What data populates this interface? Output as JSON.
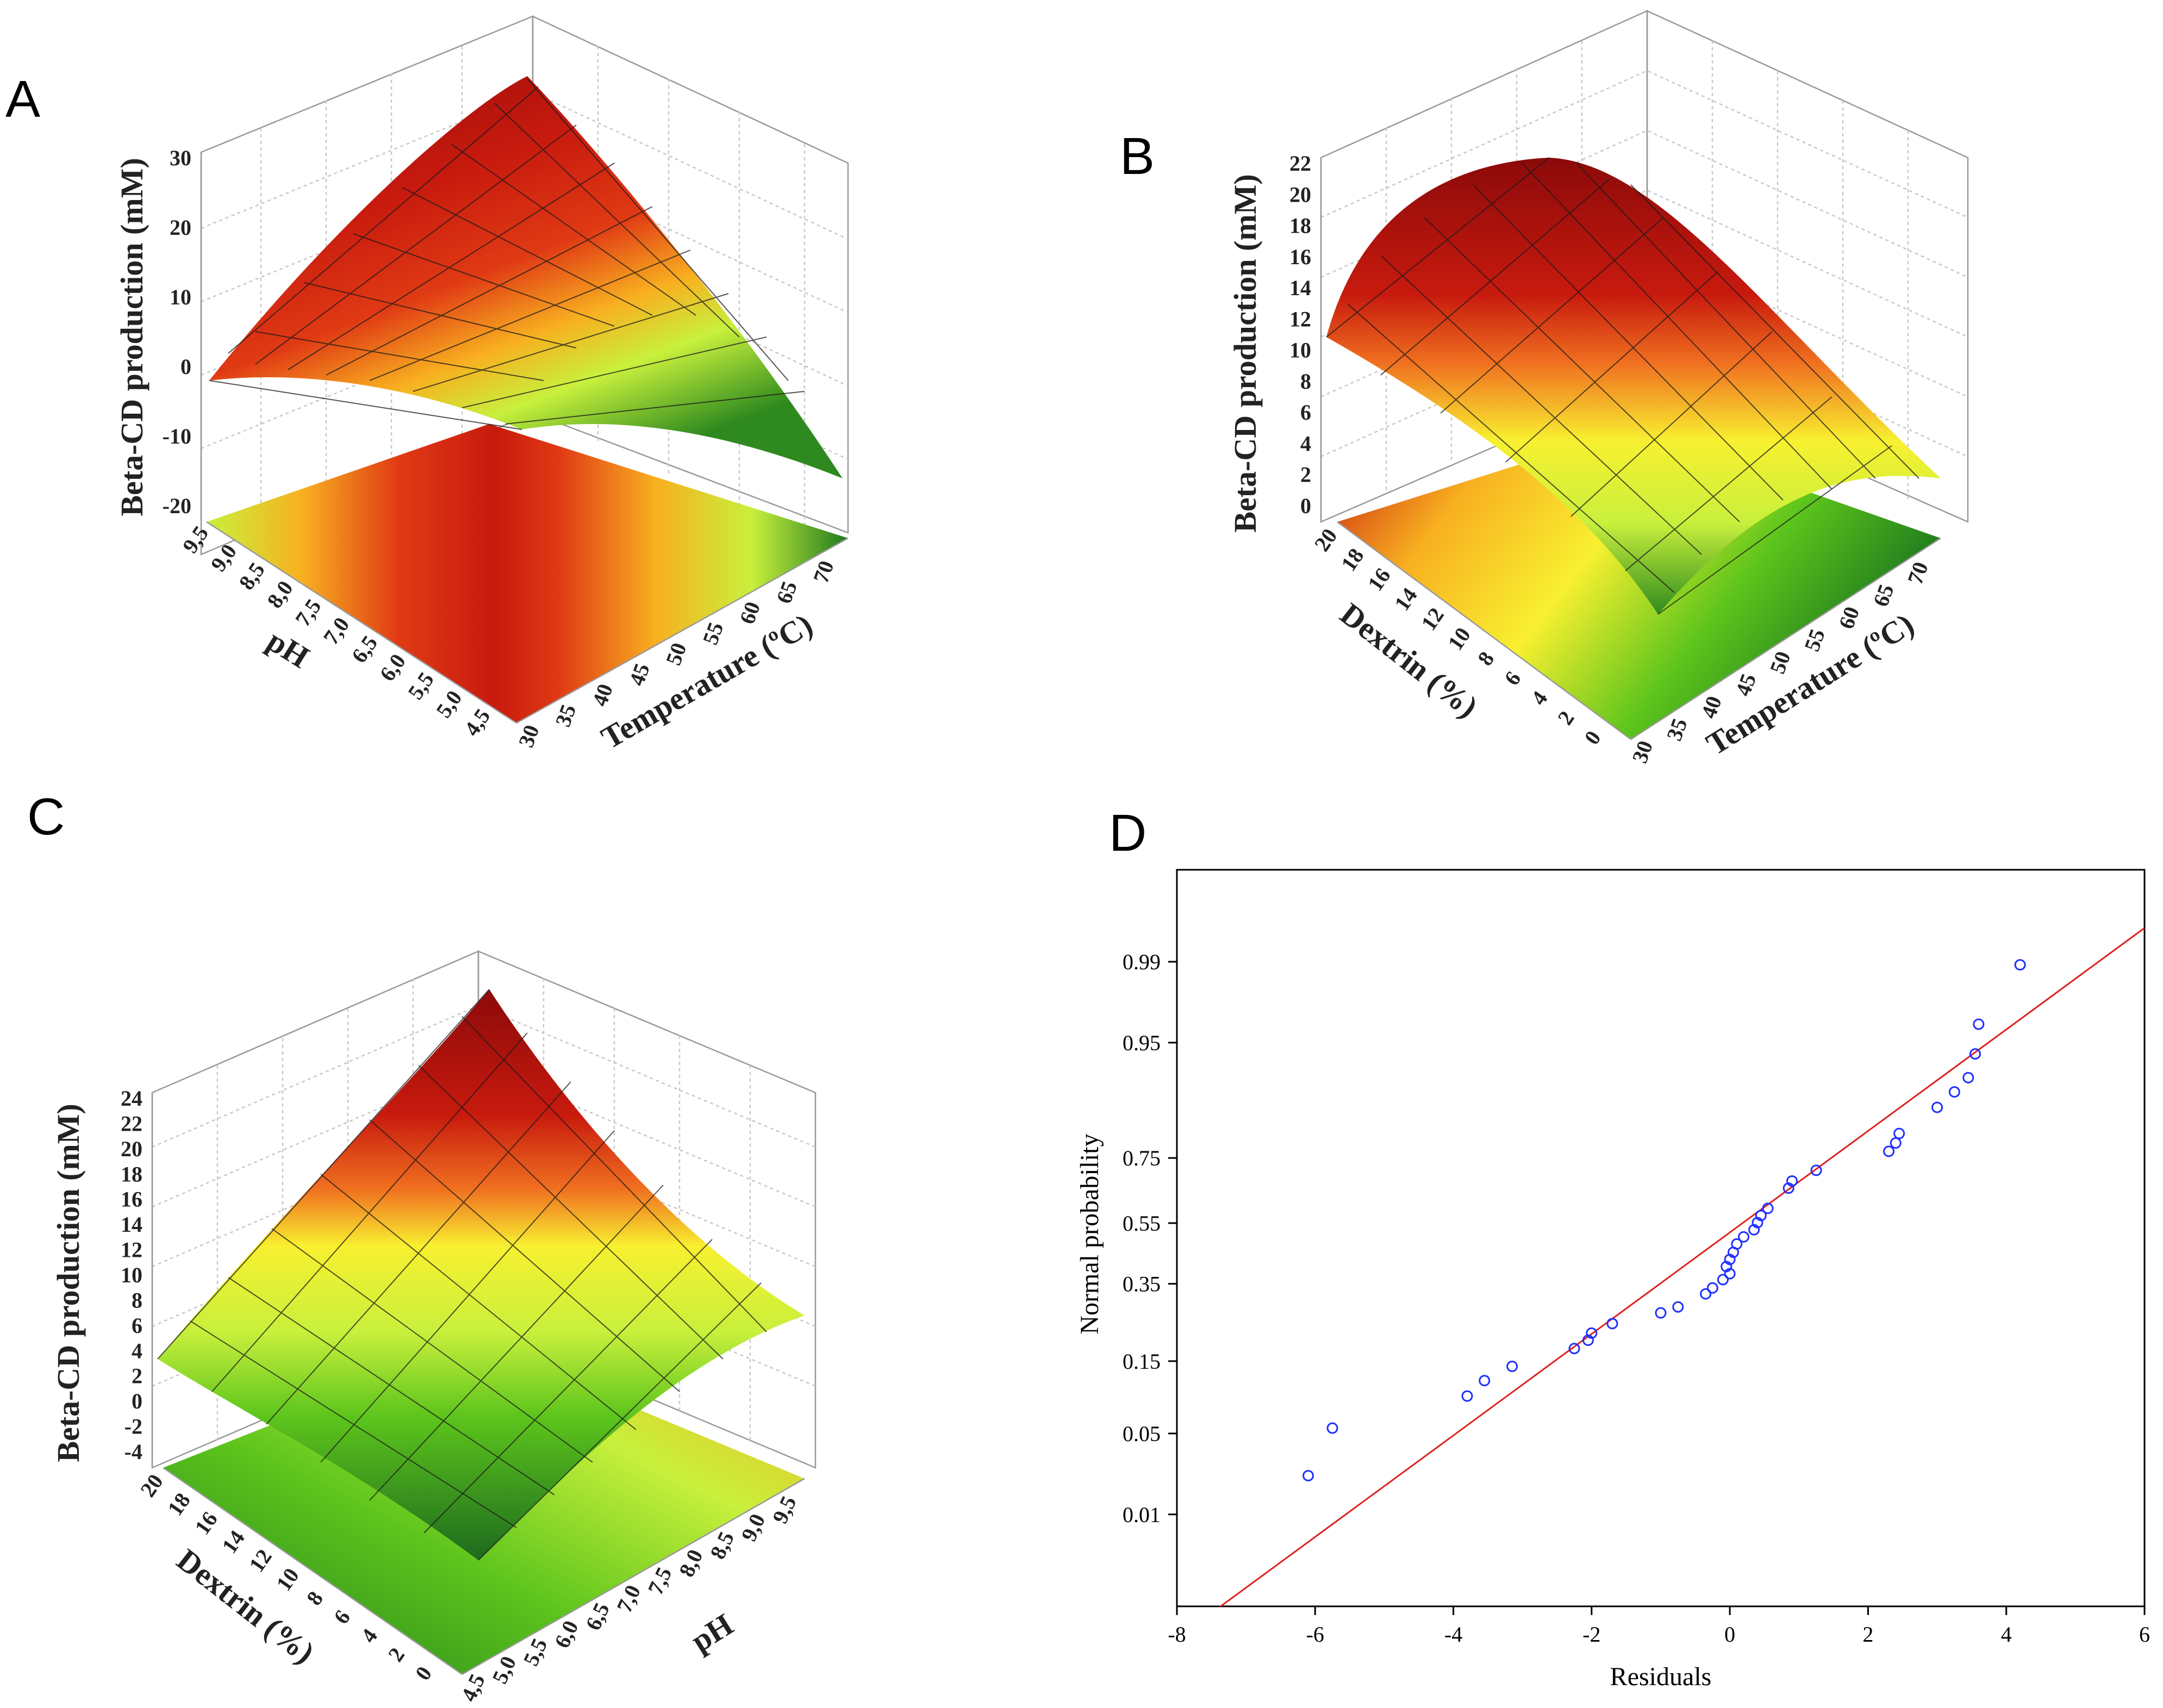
{
  "chart_data": [
    {
      "panel": "A",
      "type": "surface",
      "zlabel": "Beta-CD production (mM)",
      "xlabel": "Temperature (ºC)",
      "ylabel": "pH",
      "z_ticks": [
        "-20",
        "-10",
        "0",
        "10",
        "20",
        "30"
      ],
      "x_ticks": [
        "30",
        "35",
        "40",
        "45",
        "50",
        "55",
        "60",
        "65",
        "70"
      ],
      "y_ticks": [
        "4,5",
        "5,0",
        "5,5",
        "6,0",
        "6,5",
        "7,0",
        "7,5",
        "8,0",
        "8,5",
        "9,0",
        "9,5"
      ],
      "zlim": [
        -20,
        30
      ],
      "xlim": [
        30,
        70
      ],
      "ylim": [
        4.5,
        9.5
      ],
      "colormap": [
        "#1e7a1e",
        "#5cc41c",
        "#c8f03c",
        "#f8f030",
        "#f8b020",
        "#f07020",
        "#e03a14",
        "#c81a0e",
        "#8c0a0a"
      ]
    },
    {
      "panel": "B",
      "type": "surface",
      "zlabel": "Beta-CD production (mM)",
      "xlabel": "Temperature (ºC)",
      "ylabel": "Dextrin (%)",
      "z_ticks": [
        "0",
        "2",
        "4",
        "6",
        "8",
        "10",
        "12",
        "14",
        "16",
        "18",
        "20",
        "22"
      ],
      "x_ticks": [
        "30",
        "35",
        "40",
        "45",
        "50",
        "55",
        "60",
        "65",
        "70"
      ],
      "y_ticks": [
        "0",
        "2",
        "4",
        "6",
        "8",
        "10",
        "12",
        "14",
        "16",
        "18",
        "20"
      ],
      "zlim": [
        0,
        22
      ],
      "xlim": [
        30,
        70
      ],
      "ylim": [
        0,
        20
      ]
    },
    {
      "panel": "C",
      "type": "surface",
      "zlabel": "Beta-CD production (mM)",
      "xlabel": "pH",
      "ylabel": "Dextrin (%)",
      "z_ticks": [
        "-4",
        "-2",
        "0",
        "2",
        "4",
        "6",
        "8",
        "10",
        "12",
        "14",
        "16",
        "18",
        "20",
        "22",
        "24"
      ],
      "x_ticks": [
        "4,5",
        "5,0",
        "5,5",
        "6,0",
        "6,5",
        "7,0",
        "7,5",
        "8,0",
        "8,5",
        "9,0",
        "9,5"
      ],
      "y_ticks": [
        "0",
        "2",
        "4",
        "6",
        "8",
        "10",
        "12",
        "14",
        "16",
        "18",
        "20"
      ],
      "zlim": [
        -4,
        24
      ],
      "xlim": [
        4.5,
        9.5
      ],
      "ylim": [
        0,
        20
      ]
    },
    {
      "panel": "D",
      "type": "scatter",
      "title": "",
      "xlabel": "Residuals",
      "ylabel": "Normal probability",
      "xlim": [
        -8,
        6
      ],
      "x_ticks": [
        "-8",
        "-6",
        "-4",
        "-2",
        "0",
        "2",
        "4",
        "6"
      ],
      "y_tick_labels": [
        "0.01",
        "0.05",
        "0.15",
        "0.35",
        "0.55",
        "0.75",
        "0.95",
        "0.99"
      ],
      "y_tick_z": [
        -2.326,
        -1.645,
        -1.036,
        -0.385,
        0.126,
        0.674,
        1.645,
        2.326
      ],
      "zlim": [
        -3.1,
        3.1
      ],
      "point_color": "#1f2fff",
      "line_color": "#e02020",
      "fit_line": [
        {
          "x": -8,
          "z": -3.37
        },
        {
          "x": 6,
          "z": 2.61
        }
      ],
      "points": [
        {
          "x": -6.1,
          "z": -2.0
        },
        {
          "x": -5.75,
          "z": -1.6
        },
        {
          "x": -3.8,
          "z": -1.33
        },
        {
          "x": -3.55,
          "z": -1.2
        },
        {
          "x": -3.15,
          "z": -1.08
        },
        {
          "x": -2.25,
          "z": -0.93
        },
        {
          "x": -2.05,
          "z": -0.86
        },
        {
          "x": -2.0,
          "z": -0.8
        },
        {
          "x": -1.7,
          "z": -0.72
        },
        {
          "x": -1.0,
          "z": -0.63
        },
        {
          "x": -0.75,
          "z": -0.58
        },
        {
          "x": -0.35,
          "z": -0.47
        },
        {
          "x": -0.25,
          "z": -0.42
        },
        {
          "x": -0.1,
          "z": -0.35
        },
        {
          "x": 0.0,
          "z": -0.3
        },
        {
          "x": -0.05,
          "z": -0.24
        },
        {
          "x": 0.0,
          "z": -0.18
        },
        {
          "x": 0.05,
          "z": -0.12
        },
        {
          "x": 0.1,
          "z": -0.05
        },
        {
          "x": 0.2,
          "z": 0.01
        },
        {
          "x": 0.35,
          "z": 0.07
        },
        {
          "x": 0.4,
          "z": 0.13
        },
        {
          "x": 0.45,
          "z": 0.19
        },
        {
          "x": 0.55,
          "z": 0.25
        },
        {
          "x": 0.85,
          "z": 0.42
        },
        {
          "x": 0.9,
          "z": 0.48
        },
        {
          "x": 1.25,
          "z": 0.57
        },
        {
          "x": 2.3,
          "z": 0.73
        },
        {
          "x": 2.4,
          "z": 0.8
        },
        {
          "x": 2.45,
          "z": 0.88
        },
        {
          "x": 3.0,
          "z": 1.1
        },
        {
          "x": 3.25,
          "z": 1.23
        },
        {
          "x": 3.45,
          "z": 1.35
        },
        {
          "x": 3.55,
          "z": 1.55
        },
        {
          "x": 3.6,
          "z": 1.8
        },
        {
          "x": 4.2,
          "z": 2.3
        }
      ]
    }
  ],
  "panels": {
    "a": "A",
    "b": "B",
    "c": "C",
    "d": "D"
  }
}
